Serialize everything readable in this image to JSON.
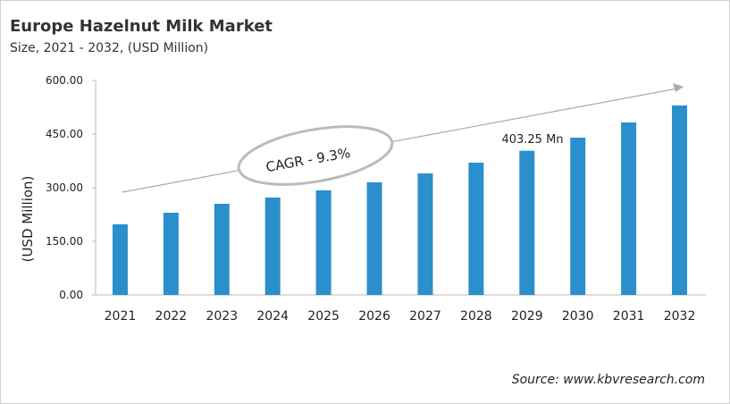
{
  "chart_data": {
    "type": "bar",
    "title": "Europe Hazelnut Milk Market",
    "subtitle": "Size, 2021 - 2032, (USD Million)",
    "ylabel": "(USD Million)",
    "xlabel": "",
    "categories": [
      "2021",
      "2022",
      "2023",
      "2024",
      "2025",
      "2026",
      "2027",
      "2028",
      "2029",
      "2030",
      "2031",
      "2032"
    ],
    "values": [
      197.5,
      230,
      255,
      272.5,
      292.5,
      315,
      340,
      370,
      403.25,
      440,
      482.5,
      530
    ],
    "ylim": [
      0,
      600
    ],
    "yticks": [
      "0.00",
      "150.00",
      "300.00",
      "450.00",
      "600.00"
    ],
    "bar_color": "#2b8fcc",
    "grid": false,
    "annotations": {
      "cagr": "CAGR - 9.3%",
      "value_label": "403.25 Mn"
    },
    "source": "Source: www.kbvresearch.com"
  }
}
